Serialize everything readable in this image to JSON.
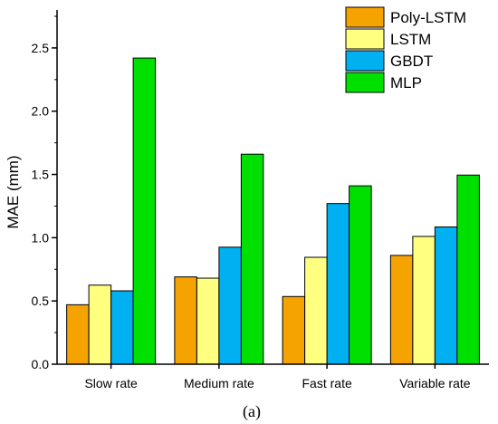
{
  "chart_data": {
    "type": "bar",
    "categories": [
      "Slow rate",
      "Medium rate",
      "Fast rate",
      "Variable rate"
    ],
    "series": [
      {
        "name": "Poly-LSTM",
        "color": "#f5a300",
        "values": [
          0.47,
          0.69,
          0.535,
          0.86
        ]
      },
      {
        "name": "LSTM",
        "color": "#ffff80",
        "values": [
          0.625,
          0.68,
          0.845,
          1.01
        ]
      },
      {
        "name": "GBDT",
        "color": "#00b0f0",
        "values": [
          0.58,
          0.925,
          1.27,
          1.085
        ]
      },
      {
        "name": "MLP",
        "color": "#00e000",
        "values": [
          2.42,
          1.66,
          1.41,
          1.495
        ]
      }
    ],
    "ylabel": "MAE (mm)",
    "xlabel": "",
    "ylim": [
      0,
      2.8
    ],
    "yticks": [
      "0.0",
      "0.5",
      "1.0",
      "1.5",
      "2.0",
      "2.5"
    ],
    "grid": false,
    "legend_position": "top-right"
  },
  "caption": "(a)"
}
